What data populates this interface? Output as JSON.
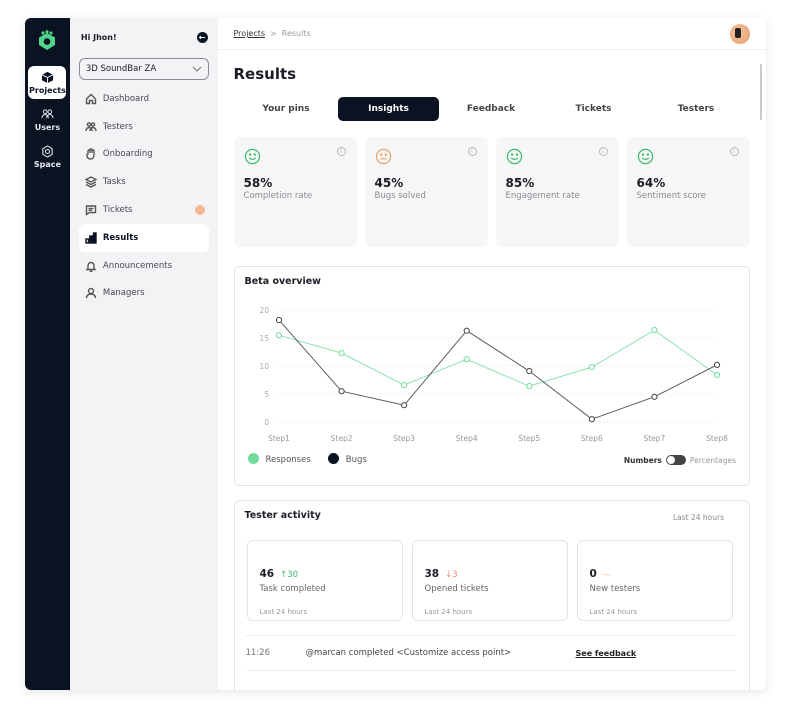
{
  "rail": {
    "items": [
      {
        "label": "Projects",
        "icon": "cube-icon",
        "active": true
      },
      {
        "label": "Users",
        "icon": "users-icon",
        "active": false
      },
      {
        "label": "Space",
        "icon": "gear-icon",
        "active": false
      }
    ]
  },
  "sidebar": {
    "greeting": "Hi Jhon!",
    "project_select": "3D SoundBar ZA",
    "items": [
      {
        "label": "Dashboard",
        "icon": "home-icon"
      },
      {
        "label": "Testers",
        "icon": "users-icon"
      },
      {
        "label": "Onboarding",
        "icon": "hand-icon"
      },
      {
        "label": "Tasks",
        "icon": "layers-icon"
      },
      {
        "label": "Tickets",
        "icon": "message-icon",
        "badge": true
      },
      {
        "label": "Results",
        "icon": "bar-chart-icon",
        "active": true
      },
      {
        "label": "Announcements",
        "icon": "bell-icon"
      },
      {
        "label": "Managers",
        "icon": "user-icon"
      }
    ]
  },
  "breadcrumb": {
    "parent": "Projects",
    "separator": ">",
    "current": "Results"
  },
  "page": {
    "title": "Results",
    "tabs": [
      "Your pins",
      "Insights",
      "Feedback",
      "Tickets",
      "Testers"
    ],
    "active_tab": "Insights"
  },
  "stats": [
    {
      "value": "58%",
      "label": "Completion rate",
      "mood": "happy",
      "color": "#3dbb6e"
    },
    {
      "value": "45%",
      "label": "Bugs solved",
      "mood": "neutral",
      "color": "#e8a36b"
    },
    {
      "value": "85%",
      "label": "Engagement rate",
      "mood": "happy",
      "color": "#3dbb6e"
    },
    {
      "value": "64%",
      "label": "Sentiment score",
      "mood": "happy",
      "color": "#3dbb6e"
    }
  ],
  "chart_data": {
    "type": "line",
    "title": "Beta overview",
    "categories": [
      "Step1",
      "Step2",
      "Step3",
      "Step4",
      "Step5",
      "Step6",
      "Step7",
      "Step8"
    ],
    "series": [
      {
        "name": "Responses",
        "color": "#6fdc9c",
        "values": [
          15.5,
          12.3,
          6.6,
          11.2,
          6.4,
          9.8,
          16.4,
          8.4
        ]
      },
      {
        "name": "Bugs",
        "color": "#0b1222",
        "values": [
          18.2,
          5.5,
          3.0,
          16.3,
          9.1,
          0.5,
          4.5,
          10.2
        ]
      }
    ],
    "yticks": [
      0,
      5,
      10,
      15,
      20
    ],
    "ylim": [
      0,
      20
    ],
    "xlabel": "",
    "ylabel": "",
    "grid": true,
    "legend_position": "bottom-left"
  },
  "chart_toggle": {
    "left": "Numbers",
    "right": "Percentages",
    "state": "Numbers"
  },
  "activity": {
    "title": "Tester activity",
    "range": "Last 24 hours",
    "cards": [
      {
        "value": "46",
        "delta": "↑30",
        "delta_color": "#3dbb6e",
        "label": "Task completed",
        "foot": "Last 24 hours"
      },
      {
        "value": "38",
        "delta": "↓3",
        "delta_color": "#f08a7a",
        "label": "Opened tickets",
        "foot": "Last 24 hours"
      },
      {
        "value": "0",
        "delta": "—",
        "delta_color": "#f0b38a",
        "label": "New testers",
        "foot": "Last 24 hours"
      }
    ],
    "log": [
      {
        "time": "11:26",
        "message": "@marcan completed <Customize access point>",
        "link": "See feedback"
      }
    ]
  }
}
